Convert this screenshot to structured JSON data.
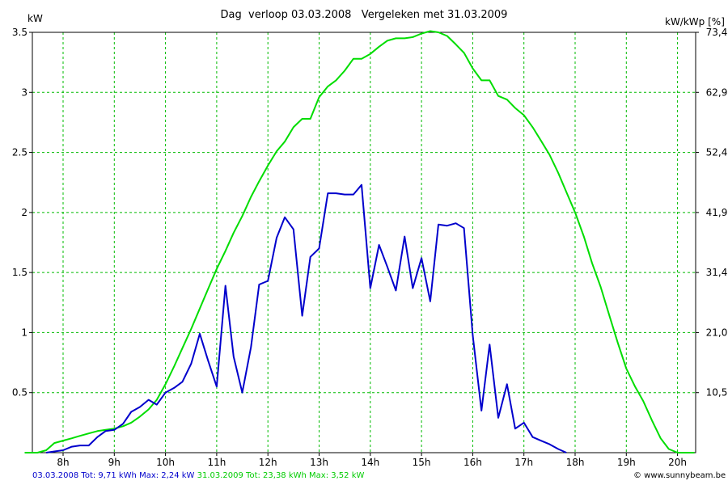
{
  "title": "Dag  verloop 03.03.2008   Vergeleken met 31.03.2009",
  "unit_left": "kW",
  "unit_right": "kW/kWp [%]",
  "footer": {
    "series_a": "03.03.2008 Tot: 9,71 kWh Max: 2,24 kW",
    "series_b": "31.03.2009 Tot: 23,38 kWh Max: 3,52 kW"
  },
  "credit": "© www.sunnybeam.be",
  "colors": {
    "series_a": "#0000cc",
    "series_b": "#00dd00",
    "grid": "#00bb00",
    "axis": "#000000"
  },
  "chart_data": {
    "type": "line",
    "title": "Dag  verloop 03.03.2008   Vergeleken met 31.03.2009",
    "ylabel": "kW",
    "y2label": "kW/kWp [%]",
    "ylim": [
      0,
      3.5
    ],
    "xlim": [
      7.25,
      20.4
    ],
    "grid": true,
    "y_ticks": [
      "0.5",
      "1",
      "1.5",
      "2",
      "2.5",
      "3",
      "3.5"
    ],
    "y2_ticks": [
      "10,5",
      "21,0",
      "31,4",
      "41,9",
      "52,4",
      "62,9",
      "73,4"
    ],
    "x_ticks": [
      "8h",
      "9h",
      "10h",
      "11h",
      "12h",
      "13h",
      "14h",
      "15h",
      "16h",
      "17h",
      "18h",
      "19h",
      "20h"
    ],
    "series": [
      {
        "name": "03.03.2008",
        "color": "#0000cc",
        "x": [
          7.67,
          7.83,
          8.0,
          8.17,
          8.33,
          8.5,
          8.67,
          8.83,
          9.0,
          9.17,
          9.33,
          9.5,
          9.67,
          9.83,
          10.0,
          10.17,
          10.33,
          10.5,
          10.67,
          10.83,
          11.0,
          11.17,
          11.33,
          11.5,
          11.67,
          11.83,
          12.0,
          12.17,
          12.33,
          12.5,
          12.67,
          12.83,
          13.0,
          13.17,
          13.33,
          13.5,
          13.67,
          13.83,
          14.0,
          14.17,
          14.33,
          14.5,
          14.67,
          14.83,
          15.0,
          15.17,
          15.33,
          15.5,
          15.67,
          15.83,
          16.0,
          16.17,
          16.33,
          16.5,
          16.67,
          16.83,
          17.0,
          17.17,
          17.33,
          17.5,
          17.67,
          17.83
        ],
        "values": [
          0,
          0.01,
          0.02,
          0.05,
          0.06,
          0.06,
          0.13,
          0.18,
          0.19,
          0.24,
          0.34,
          0.38,
          0.44,
          0.4,
          0.5,
          0.54,
          0.59,
          0.74,
          0.99,
          0.77,
          0.55,
          1.39,
          0.8,
          0.5,
          0.88,
          1.4,
          1.43,
          1.79,
          1.96,
          1.86,
          1.14,
          1.63,
          1.7,
          2.16,
          2.16,
          2.15,
          2.15,
          2.23,
          1.37,
          1.73,
          1.55,
          1.35,
          1.8,
          1.37,
          1.62,
          1.26,
          1.9,
          1.89,
          1.91,
          1.87,
          0.98,
          0.35,
          0.9,
          0.29,
          0.57,
          0.2,
          0.25,
          0.13,
          0.1,
          0.07,
          0.03,
          0
        ]
      },
      {
        "name": "31.03.2009",
        "color": "#00dd00",
        "x": [
          7.25,
          7.5,
          7.67,
          7.83,
          8.0,
          8.17,
          8.33,
          8.5,
          8.67,
          8.83,
          9.0,
          9.17,
          9.33,
          9.5,
          9.67,
          9.83,
          10.0,
          10.17,
          10.33,
          10.5,
          10.67,
          10.83,
          11.0,
          11.17,
          11.33,
          11.5,
          11.67,
          11.83,
          12.0,
          12.17,
          12.33,
          12.5,
          12.67,
          12.83,
          13.0,
          13.17,
          13.33,
          13.5,
          13.67,
          13.83,
          14.0,
          14.17,
          14.33,
          14.5,
          14.67,
          14.83,
          15.0,
          15.17,
          15.33,
          15.5,
          15.67,
          15.83,
          16.0,
          16.17,
          16.33,
          16.5,
          16.67,
          16.83,
          17.0,
          17.17,
          17.33,
          17.5,
          17.67,
          17.83,
          18.0,
          18.17,
          18.33,
          18.5,
          18.67,
          18.83,
          19.0,
          19.17,
          19.33,
          19.5,
          19.67,
          19.83,
          20.0,
          20.17,
          20.33
        ],
        "values": [
          0,
          0,
          0.02,
          0.08,
          0.1,
          0.12,
          0.14,
          0.16,
          0.18,
          0.19,
          0.2,
          0.22,
          0.25,
          0.3,
          0.36,
          0.44,
          0.57,
          0.72,
          0.87,
          1.03,
          1.2,
          1.36,
          1.53,
          1.68,
          1.83,
          1.97,
          2.13,
          2.26,
          2.39,
          2.51,
          2.59,
          2.71,
          2.78,
          2.78,
          2.96,
          3.05,
          3.1,
          3.18,
          3.28,
          3.28,
          3.32,
          3.38,
          3.43,
          3.45,
          3.45,
          3.46,
          3.49,
          3.51,
          3.5,
          3.47,
          3.4,
          3.33,
          3.2,
          3.1,
          3.1,
          2.97,
          2.94,
          2.87,
          2.81,
          2.71,
          2.6,
          2.48,
          2.33,
          2.17,
          2.0,
          1.8,
          1.58,
          1.38,
          1.14,
          0.92,
          0.7,
          0.55,
          0.43,
          0.27,
          0.12,
          0.03,
          0,
          0,
          0
        ]
      }
    ]
  }
}
